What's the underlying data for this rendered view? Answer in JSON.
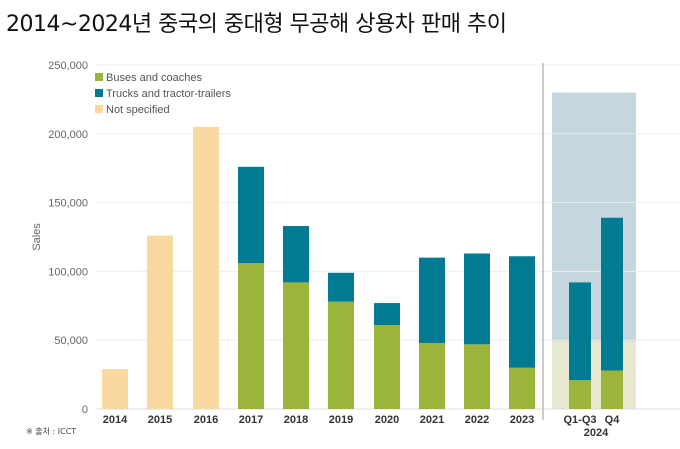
{
  "title": "2014~2024년 중국의 중대형 무공해 상용차 판매 추이",
  "source": "※ 출처 : ICCT",
  "colors": {
    "buses": "#9bb53a",
    "trucks": "#027a92",
    "unspecified": "#f9d9a0",
    "projection_upper": "#c5d6df",
    "projection_lower": "#e8e9d0"
  },
  "chart_data": {
    "type": "bar",
    "stacked": true,
    "ylabel": "Sales",
    "ylim": [
      0,
      250000
    ],
    "yticks": [
      0,
      50000,
      100000,
      150000,
      200000,
      250000
    ],
    "ytick_labels": [
      "0",
      "50,000",
      "100,000",
      "150,000",
      "200,000",
      "250,000"
    ],
    "categories": [
      "2014",
      "2015",
      "2016",
      "2017",
      "2018",
      "2019",
      "2020",
      "2021",
      "2022",
      "2023",
      "Q1-Q3",
      "Q4"
    ],
    "group_label_2024": "2024",
    "legend": [
      "Buses and coaches",
      "Trucks and tractor-trailers",
      "Not specified"
    ],
    "legend_position": "top-left",
    "series": [
      {
        "name": "Buses and coaches",
        "values": [
          0,
          0,
          0,
          106000,
          92000,
          78000,
          61000,
          48000,
          47000,
          30000,
          21000,
          28000
        ]
      },
      {
        "name": "Trucks and tractor-trailers",
        "values": [
          0,
          0,
          0,
          70000,
          41000,
          21000,
          16000,
          62000,
          66000,
          81000,
          71000,
          111000
        ]
      },
      {
        "name": "Not specified",
        "values": [
          29000,
          126000,
          205000,
          0,
          0,
          0,
          0,
          0,
          0,
          0,
          0,
          0
        ]
      }
    ],
    "projection_2024": {
      "total": 230000,
      "buses": 49000
    }
  }
}
